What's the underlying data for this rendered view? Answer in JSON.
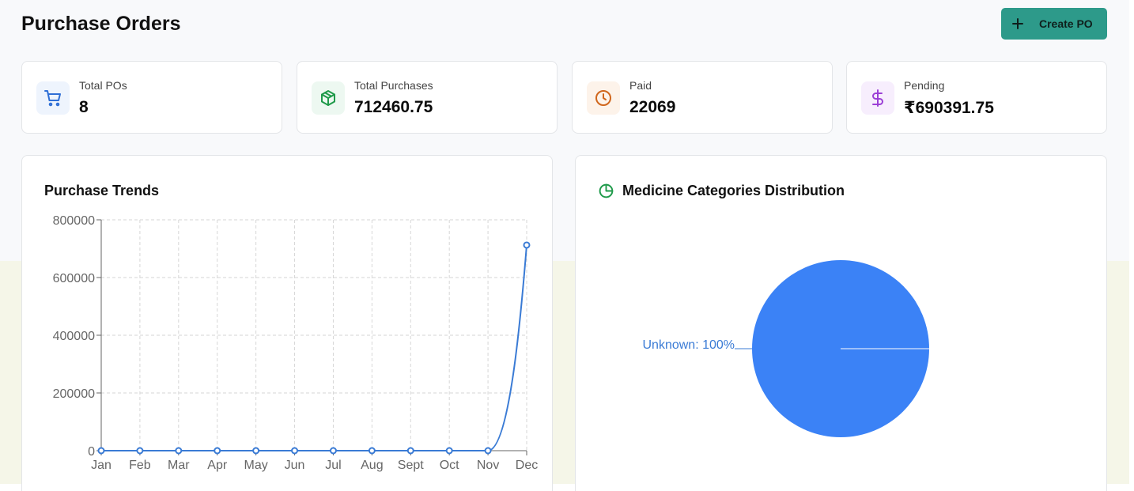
{
  "header": {
    "title": "Purchase Orders",
    "create_button_label": "Create PO"
  },
  "stats": [
    {
      "label": "Total POs",
      "value": "8",
      "icon": "shopping-cart-icon",
      "color": "#2f6fd6",
      "bg": "#eef4fd"
    },
    {
      "label": "Total Purchases",
      "value": "712460.75",
      "icon": "package-icon",
      "color": "#1f9a4a",
      "bg": "#edf8f1"
    },
    {
      "label": "Paid",
      "value": "22069",
      "icon": "clock-icon",
      "color": "#d0661c",
      "bg": "#fdf3ea"
    },
    {
      "label": "Pending",
      "value": "₹690391.75",
      "icon": "dollar-icon",
      "color": "#9b3fd6",
      "bg": "#f7eefd"
    }
  ],
  "trends_panel": {
    "title": "Purchase Trends"
  },
  "categories_panel": {
    "title": "Medicine Categories Distribution",
    "icon": "pie-chart-icon"
  },
  "colors": {
    "accent": "#2d9a8a",
    "line": "#3a7bd5",
    "pie": "#3b82f6"
  },
  "chart_data": [
    {
      "type": "line",
      "title": "Purchase Trends",
      "categories": [
        "Jan",
        "Feb",
        "Mar",
        "Apr",
        "May",
        "Jun",
        "Jul",
        "Aug",
        "Sept",
        "Oct",
        "Nov",
        "Dec"
      ],
      "values": [
        0,
        0,
        0,
        0,
        0,
        0,
        0,
        0,
        0,
        0,
        0,
        712460.75
      ],
      "ylim": [
        0,
        800000
      ],
      "yticks": [
        0,
        200000,
        400000,
        600000,
        800000
      ],
      "grid": true
    },
    {
      "type": "pie",
      "title": "Medicine Categories Distribution",
      "slices": [
        {
          "label": "Unknown: 100%",
          "value": 100
        }
      ]
    }
  ]
}
